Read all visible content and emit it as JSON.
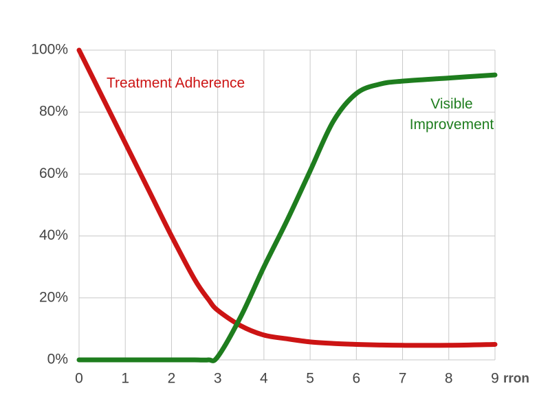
{
  "chart_data": {
    "type": "line",
    "x_label": "rron",
    "x": [
      0,
      0.5,
      1,
      1.5,
      2,
      2.5,
      2.8,
      3,
      3.5,
      4,
      4.5,
      5,
      5.5,
      6,
      6.5,
      7,
      8,
      9
    ],
    "series": [
      {
        "name": "Treatment Adherence",
        "color": "#cc1414",
        "values": [
          100,
          85,
          70,
          55,
          40,
          26,
          19.5,
          16,
          11,
          8,
          6.8,
          5.8,
          5.3,
          5,
          4.8,
          4.7,
          4.7,
          5
        ]
      },
      {
        "name": "Visible Improvement",
        "color": "#1e7d1e",
        "values": [
          0,
          0,
          0,
          0,
          0,
          0,
          0,
          1,
          14,
          30,
          45,
          61,
          77,
          86,
          89,
          90,
          91,
          92
        ]
      }
    ],
    "xlim": [
      0,
      9
    ],
    "xticks": [
      0,
      1,
      2,
      3,
      4,
      5,
      6,
      7,
      8,
      9
    ],
    "ylim": [
      0,
      100
    ],
    "yticks": [
      {
        "value": 0,
        "label": "0%"
      },
      {
        "value": 20,
        "label": "20%"
      },
      {
        "value": 40,
        "label": "40%"
      },
      {
        "value": 60,
        "label": "60%"
      },
      {
        "value": 80,
        "label": "80%"
      },
      {
        "value": 100,
        "label": "100%"
      }
    ],
    "grid": true
  }
}
